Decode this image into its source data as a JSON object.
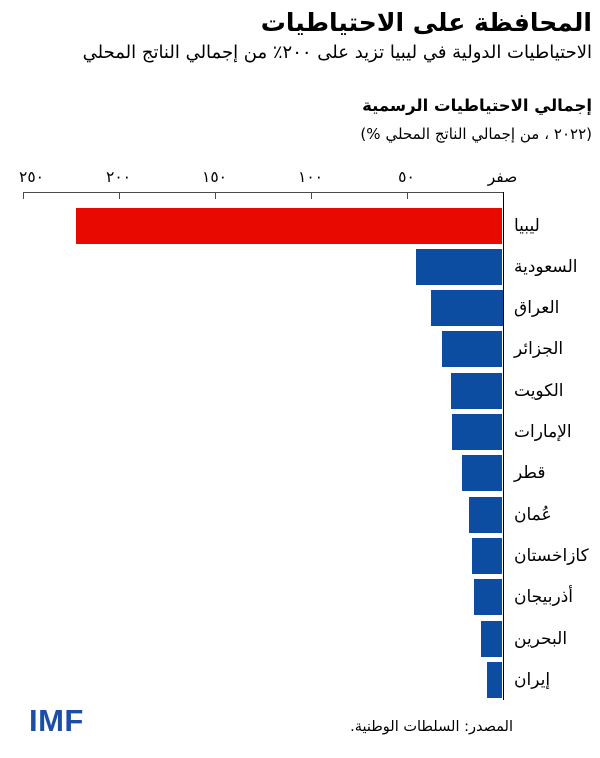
{
  "header": {
    "title": "المحافظة على الاحتياطيات",
    "subtitle": "الاحتياطيات الدولية في ليبيا تزيد على ٢٠٠٪ من إجمالي الناتج المحلي"
  },
  "panel": {
    "heading": "إجمالي الاحتياطيات الرسمية",
    "subheading_open": "(%",
    "subheading_text": "من إجمالي الناتج المحلي",
    "subheading_year": "، ٢٠٢٢)"
  },
  "chart_data": {
    "type": "bar",
    "orientation": "horizontal",
    "axis_direction": "rtl-zero-on-right",
    "title": "إجمالي الاحتياطيات الرسمية",
    "subtitle": "(% من إجمالي الناتج المحلي، ٢٠٢٢)",
    "categories": [
      "ليبيا",
      "السعودية",
      "العراق",
      "الجزائر",
      "الكويت",
      "الإمارات",
      "قطر",
      "عُمان",
      "كازاخستان",
      "أذربيجان",
      "البحرين",
      "إيران"
    ],
    "values": [
      222,
      45,
      37.5,
      31.5,
      27,
      26.5,
      21,
      17.5,
      16,
      15,
      11,
      8
    ],
    "highlight_index": 0,
    "xlim": [
      0,
      250
    ],
    "axis": {
      "tick_values": [
        250,
        200,
        150,
        100,
        50,
        0
      ],
      "tick_labels": [
        "٢٥٠",
        "٢٠٠",
        "١٥٠",
        "١٠٠",
        "٥٠",
        "صفر"
      ]
    },
    "colors": {
      "highlight": "#e80a00",
      "bar": "#0c4da2",
      "axis": "#4a4a4a"
    },
    "grid": false,
    "legend": false
  },
  "footer": {
    "logo": "IMF",
    "logo_color": "#1c4ea6",
    "source": "المصدر: السلطات الوطنية."
  }
}
